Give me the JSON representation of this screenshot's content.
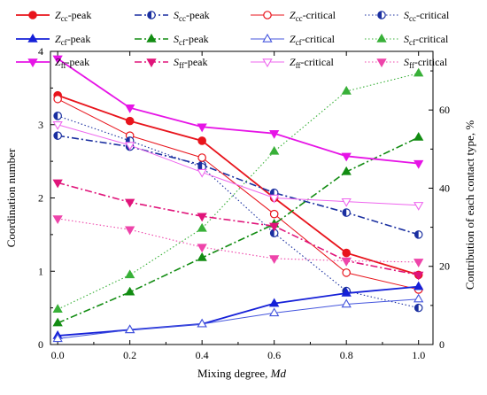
{
  "chart_data": {
    "type": "line",
    "xlabel": "Mixing degree, Md",
    "xlabel_parts": [
      "Mixing degree, ",
      "Md"
    ],
    "ylabel": "Coordination number",
    "y2label": "Contribution of each contact type, %",
    "x": [
      0.0,
      0.2,
      0.4,
      0.6,
      0.8,
      1.0
    ],
    "xlim": [
      -0.02,
      1.04
    ],
    "ylim": [
      0,
      4
    ],
    "y2lim": [
      0,
      75
    ],
    "x_ticks": [
      "0.0",
      "0.2",
      "0.4",
      "0.6",
      "0.8",
      "1.0"
    ],
    "y_ticks": [
      "0",
      "1",
      "2",
      "3",
      "4"
    ],
    "y2_ticks": [
      "0",
      "20",
      "40",
      "60"
    ],
    "legend_position": "top",
    "series": [
      {
        "name": "Zcc-peak",
        "name_main": "Z",
        "name_sub": "cc",
        "name_tail": "-peak",
        "axis": "left",
        "color": "#e8141c",
        "dash": "solid",
        "marker": "circle",
        "fill": "filled",
        "values": [
          3.4,
          3.05,
          2.78,
          2.0,
          1.25,
          0.95
        ]
      },
      {
        "name": "Scc-peak",
        "name_main": "S",
        "name_sub": "cc",
        "name_tail": "-peak",
        "axis": "left",
        "color": "#1a2fa0",
        "dash": "dashdot",
        "marker": "circle",
        "fill": "half",
        "values": [
          2.85,
          2.7,
          2.45,
          2.07,
          1.8,
          1.5
        ]
      },
      {
        "name": "Zcc-critical",
        "name_main": "Z",
        "name_sub": "cc",
        "name_tail": "-critical",
        "axis": "left",
        "color": "#e8141c",
        "dash": "thin",
        "marker": "circle",
        "fill": "open",
        "values": [
          3.35,
          2.85,
          2.55,
          1.78,
          0.98,
          0.75
        ]
      },
      {
        "name": "Scc-critical",
        "name_main": "S",
        "name_sub": "cc",
        "name_tail": "-critical",
        "axis": "left",
        "color": "#1a2fa0",
        "dash": "dotted",
        "marker": "circle",
        "fill": "half",
        "values": [
          3.12,
          2.78,
          2.42,
          1.52,
          0.73,
          0.5
        ]
      },
      {
        "name": "Zcf-peak",
        "name_main": "Z",
        "name_sub": "cf",
        "name_tail": "-peak",
        "axis": "left",
        "color": "#1520d8",
        "dash": "solid",
        "marker": "triangle",
        "fill": "filled",
        "values": [
          0.12,
          0.2,
          0.28,
          0.56,
          0.7,
          0.79
        ]
      },
      {
        "name": "Scf-peak",
        "name_main": "S",
        "name_sub": "cf",
        "name_tail": "-peak",
        "axis": "right",
        "color": "#128c12",
        "dash": "dashdot",
        "marker": "triangle",
        "fill": "filled",
        "values": [
          5.5,
          13.4,
          22.2,
          30.8,
          44.2,
          53.0
        ]
      },
      {
        "name": "Zcf-critical",
        "name_main": "Z",
        "name_sub": "cf",
        "name_tail": "-critical",
        "axis": "left",
        "color": "#4455dd",
        "dash": "thin",
        "marker": "triangle",
        "fill": "open",
        "values": [
          0.08,
          0.2,
          0.28,
          0.43,
          0.55,
          0.62
        ]
      },
      {
        "name": "Scf-critical",
        "name_main": "S",
        "name_sub": "cf",
        "name_tail": "-critical",
        "axis": "right",
        "color": "#38b038",
        "dash": "dotted",
        "marker": "triangle",
        "fill": "filled",
        "values": [
          9.0,
          17.8,
          29.7,
          49.4,
          64.8,
          69.4
        ]
      },
      {
        "name": "Zff-peak",
        "name_main": "Z",
        "name_sub": "ff",
        "name_tail": "-peak",
        "axis": "left",
        "color": "#e614e6",
        "dash": "solid",
        "marker": "triangle-down",
        "fill": "filled",
        "values": [
          3.9,
          3.23,
          2.97,
          2.88,
          2.57,
          2.47
        ]
      },
      {
        "name": "Sff-peak",
        "name_main": "S",
        "name_sub": "ff",
        "name_tail": "-peak",
        "axis": "right",
        "color": "#e0147a",
        "dash": "dashdot",
        "marker": "triangle-down",
        "fill": "filled",
        "values": [
          41.4,
          36.4,
          32.8,
          30.3,
          21.4,
          17.8
        ]
      },
      {
        "name": "Zff-critical",
        "name_main": "Z",
        "name_sub": "ff",
        "name_tail": "-critical",
        "axis": "left",
        "color": "#ee66ee",
        "dash": "thin",
        "marker": "triangle-down",
        "fill": "open",
        "values": [
          3.0,
          2.72,
          2.35,
          2.0,
          1.95,
          1.9
        ]
      },
      {
        "name": "Sff-critical",
        "name_main": "S",
        "name_sub": "ff",
        "name_tail": "-critical",
        "axis": "right",
        "color": "#ee44aa",
        "dash": "dotted",
        "marker": "triangle-down",
        "fill": "filled",
        "values": [
          32.2,
          29.4,
          24.9,
          22.0,
          21.4,
          21.1
        ]
      }
    ]
  }
}
